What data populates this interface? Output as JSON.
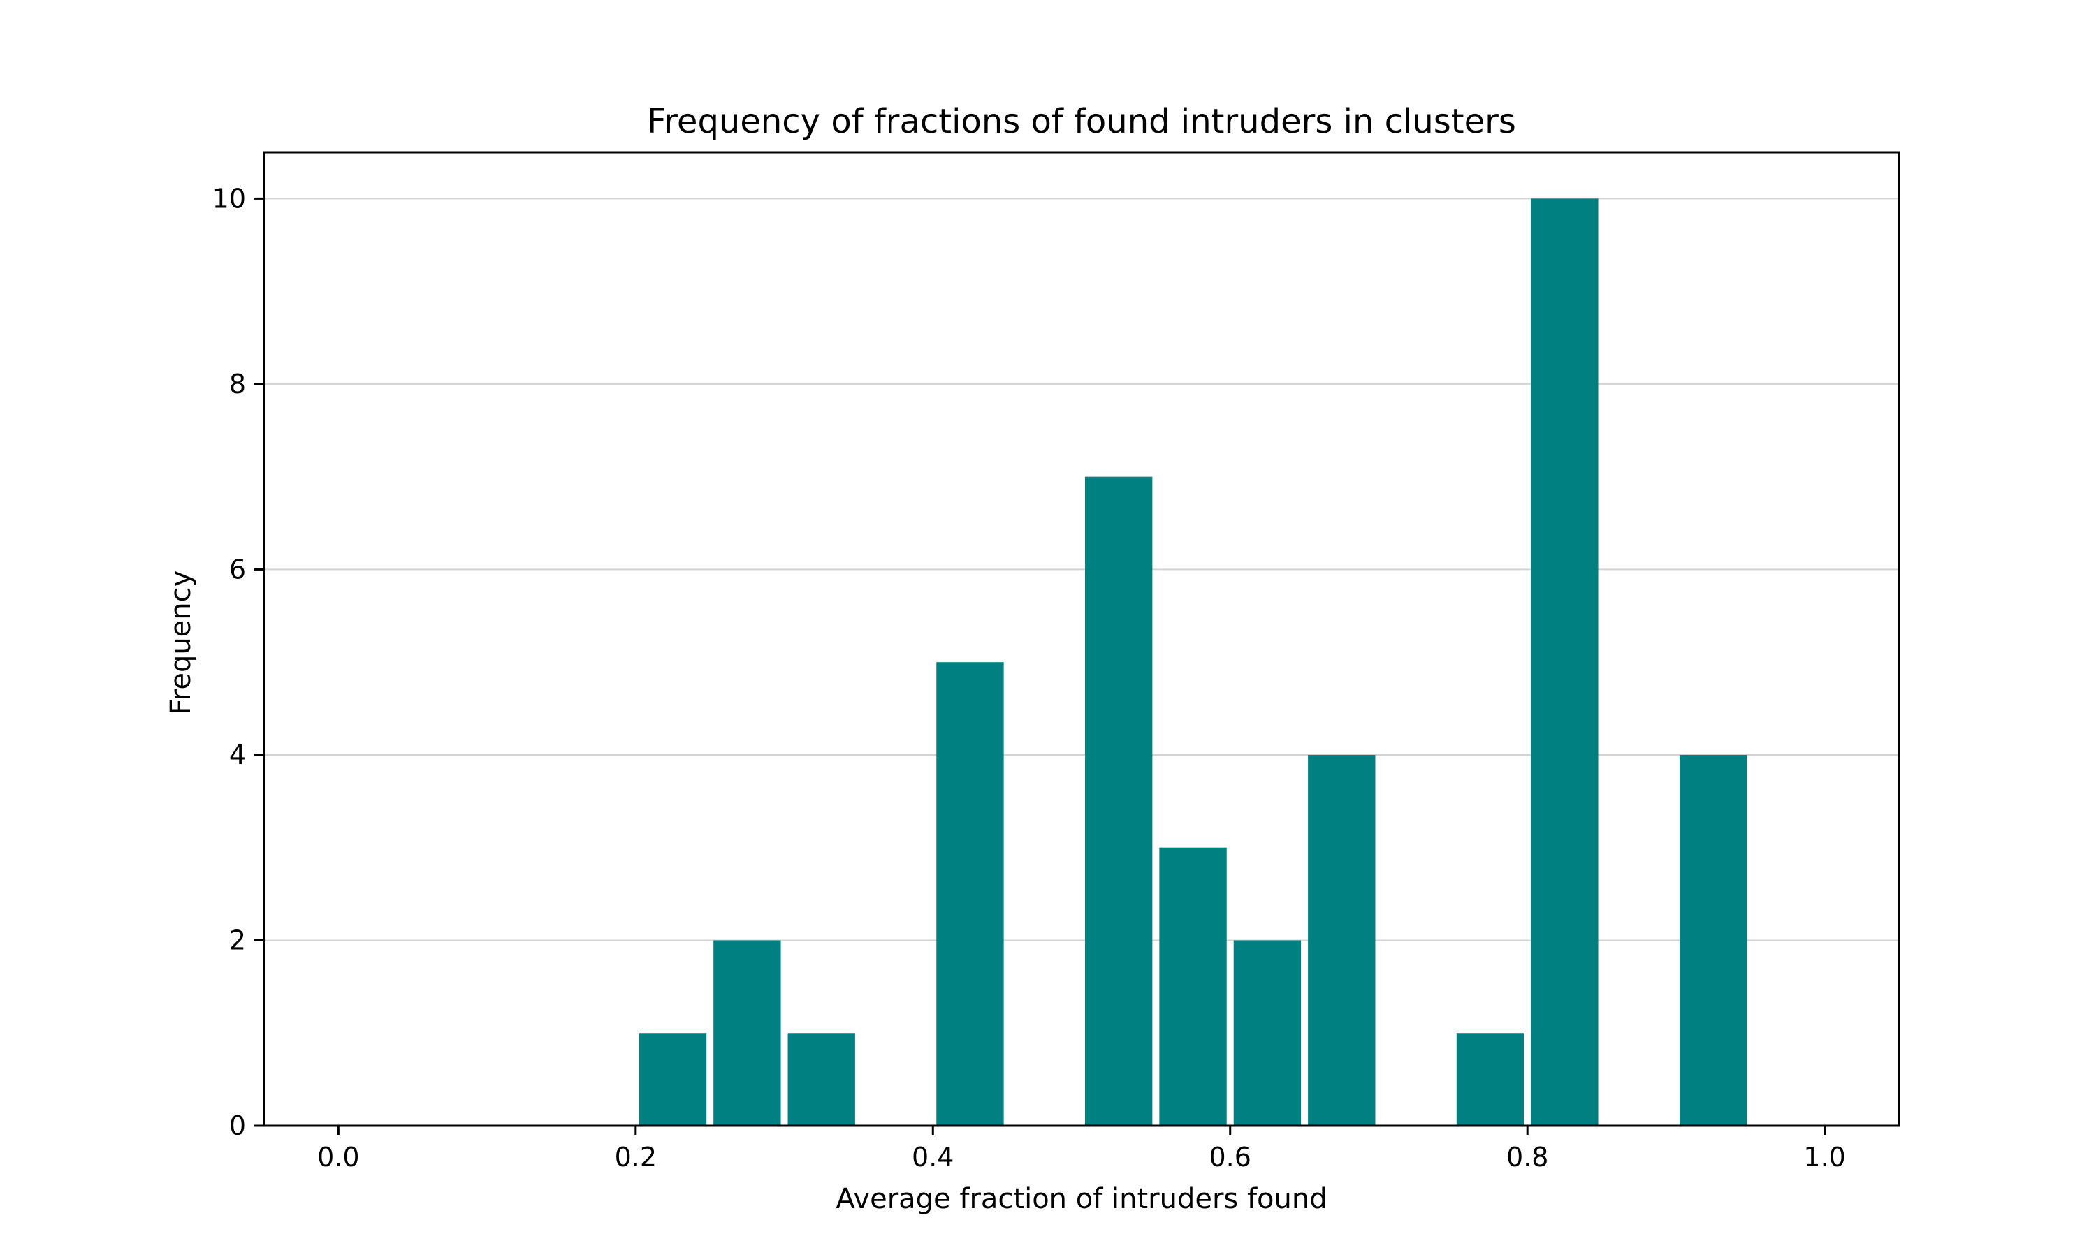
{
  "chart_data": {
    "type": "bar",
    "title": "Frequency of fractions of found intruders in clusters",
    "xlabel": "Average fraction of intruders found",
    "ylabel": "Frequency",
    "xlim": [
      -0.05,
      1.05
    ],
    "ylim": [
      0,
      10.5
    ],
    "xticks": [
      0.0,
      0.2,
      0.4,
      0.6,
      0.8,
      1.0
    ],
    "xtick_labels": [
      "0.0",
      "0.2",
      "0.4",
      "0.6",
      "0.8",
      "1.0"
    ],
    "yticks": [
      0,
      2,
      4,
      6,
      8,
      10
    ],
    "ytick_labels": [
      "0",
      "2",
      "4",
      "6",
      "8",
      "10"
    ],
    "grid": "y",
    "bar_color": "#008080",
    "bins": [
      {
        "start": 0.0,
        "end": 0.05,
        "value": 0
      },
      {
        "start": 0.05,
        "end": 0.1,
        "value": 0
      },
      {
        "start": 0.1,
        "end": 0.15,
        "value": 0
      },
      {
        "start": 0.15,
        "end": 0.2,
        "value": 0
      },
      {
        "start": 0.2,
        "end": 0.25,
        "value": 1
      },
      {
        "start": 0.25,
        "end": 0.3,
        "value": 2
      },
      {
        "start": 0.3,
        "end": 0.35,
        "value": 1
      },
      {
        "start": 0.35,
        "end": 0.4,
        "value": 0
      },
      {
        "start": 0.4,
        "end": 0.45,
        "value": 5
      },
      {
        "start": 0.45,
        "end": 0.5,
        "value": 0
      },
      {
        "start": 0.5,
        "end": 0.55,
        "value": 7
      },
      {
        "start": 0.55,
        "end": 0.6,
        "value": 3
      },
      {
        "start": 0.6,
        "end": 0.65,
        "value": 2
      },
      {
        "start": 0.65,
        "end": 0.7,
        "value": 4
      },
      {
        "start": 0.7,
        "end": 0.75,
        "value": 0
      },
      {
        "start": 0.75,
        "end": 0.8,
        "value": 1
      },
      {
        "start": 0.8,
        "end": 0.85,
        "value": 10
      },
      {
        "start": 0.85,
        "end": 0.9,
        "value": 0
      },
      {
        "start": 0.9,
        "end": 0.95,
        "value": 4
      },
      {
        "start": 0.95,
        "end": 1.0,
        "value": 0
      }
    ]
  }
}
